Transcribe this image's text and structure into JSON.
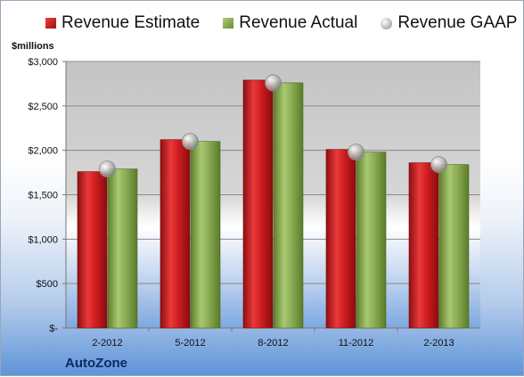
{
  "legend": {
    "estimate": "Revenue Estimate",
    "actual": "Revenue Actual",
    "gaap": "Revenue GAAP"
  },
  "unit_label": "$millions",
  "company": "AutoZone",
  "colors": {
    "estimate": "#c8181c",
    "actual": "#8db05a",
    "gaap": "#c0c0c0"
  },
  "chart_data": {
    "type": "bar",
    "categories": [
      "2-2012",
      "5-2012",
      "8-2012",
      "11-2012",
      "2-2013"
    ],
    "series": [
      {
        "name": "Revenue Estimate",
        "values": [
          1760,
          2120,
          2790,
          2010,
          1860
        ]
      },
      {
        "name": "Revenue Actual",
        "values": [
          1790,
          2100,
          2760,
          1980,
          1840
        ]
      },
      {
        "name": "Revenue GAAP",
        "values": [
          1790,
          2100,
          2760,
          1980,
          1840
        ]
      }
    ],
    "yticks": [
      "$-",
      "$500",
      "$1,000",
      "$1,500",
      "$2,000",
      "$2,500",
      "$3,000"
    ],
    "ylim": [
      0,
      3000
    ],
    "ylabel": "$millions",
    "grid": true,
    "legend_position": "top"
  }
}
